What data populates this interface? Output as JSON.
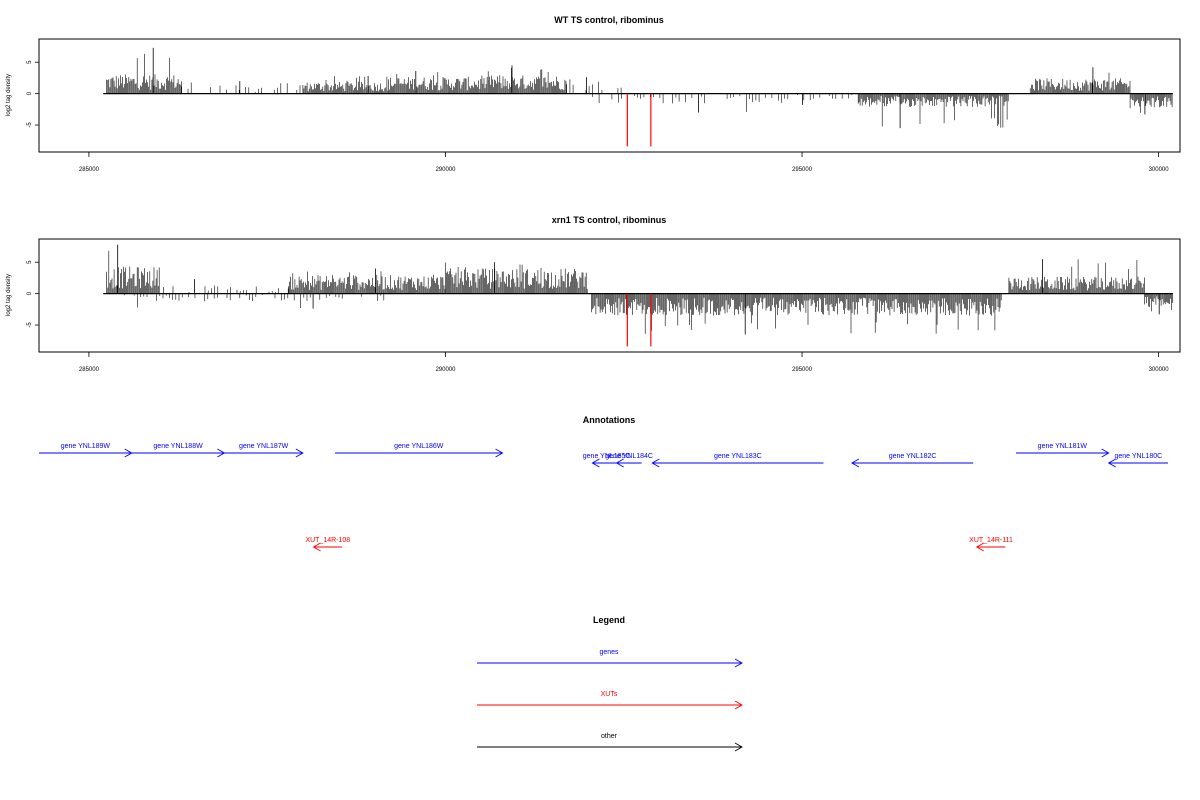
{
  "chart_data": [
    {
      "type": "bar",
      "title": "WT TS control, ribominus",
      "ylabel": "log2 tag density",
      "xlim": [
        284300,
        300300
      ],
      "ylim": [
        -9.3,
        8.7
      ],
      "xticks": [
        285000,
        290000,
        295000,
        300000
      ],
      "xtick_labels": [
        "285000",
        "290000",
        "295000",
        "300000"
      ],
      "yticks": [
        5,
        0,
        -5
      ],
      "ytick_labels": [
        "5",
        "0",
        "-5"
      ],
      "baseline_range": [
        285200,
        300200
      ],
      "highlight_positions": [
        292550,
        292880
      ],
      "highlight_color": "#ff0000",
      "bar_color": "#000000",
      "segments": [
        {
          "strand": "+",
          "x": [
            285250,
            286300
          ],
          "level": 2.3,
          "max": 7.3
        },
        {
          "strand": "+",
          "x": [
            286300,
            288000
          ],
          "level": 1.0,
          "max": 2.0,
          "sparse": true
        },
        {
          "strand": "+",
          "x": [
            288000,
            289200
          ],
          "level": 1.4,
          "max": 2.8
        },
        {
          "strand": "+",
          "x": [
            289200,
            290600
          ],
          "level": 2.0,
          "max": 3.6
        },
        {
          "strand": "+",
          "x": [
            290600,
            291700
          ],
          "level": 2.2,
          "max": 4.5
        },
        {
          "strand": "+",
          "x": [
            291700,
            292500
          ],
          "level": 1.2,
          "max": 2.6,
          "sparse": true
        },
        {
          "strand": "-",
          "x": [
            292020,
            294800
          ],
          "level": 1.2,
          "max": 3.0,
          "sparse": true
        },
        {
          "strand": "-",
          "x": [
            294800,
            295800
          ],
          "level": 0.8,
          "max": 1.8,
          "sparse": true
        },
        {
          "strand": "-",
          "x": [
            295800,
            297900
          ],
          "level": 1.6,
          "max": 5.5
        },
        {
          "strand": "+",
          "x": [
            298200,
            299600
          ],
          "level": 1.8,
          "max": 4.2
        },
        {
          "strand": "-",
          "x": [
            299600,
            300200
          ],
          "level": 1.8,
          "max": 3.3
        }
      ]
    },
    {
      "type": "bar",
      "title": "xrn1 TS control, ribominus",
      "ylabel": "log2 tag density",
      "xlim": [
        284300,
        300300
      ],
      "ylim": [
        -9.3,
        8.7
      ],
      "xticks": [
        285000,
        290000,
        295000,
        300000
      ],
      "xtick_labels": [
        "285000",
        "290000",
        "295000",
        "300000"
      ],
      "yticks": [
        5,
        0,
        -5
      ],
      "ytick_labels": [
        "5",
        "0",
        "-5"
      ],
      "baseline_range": [
        285200,
        300200
      ],
      "highlight_positions": [
        292550,
        292880
      ],
      "highlight_color": "#ff0000",
      "bar_color": "#000000",
      "segments": [
        {
          "strand": "+",
          "x": [
            285250,
            286000
          ],
          "level": 3.2,
          "max": 7.8
        },
        {
          "strand": "+",
          "x": [
            286000,
            287800
          ],
          "level": 1.0,
          "max": 2.3,
          "sparse": true
        },
        {
          "strand": "+",
          "x": [
            287800,
            290000
          ],
          "level": 2.2,
          "max": 4.0
        },
        {
          "strand": "+",
          "x": [
            290000,
            292000
          ],
          "level": 3.0,
          "max": 5.0
        },
        {
          "strand": "-",
          "x": [
            285500,
            289200
          ],
          "level": 0.9,
          "max": 2.4,
          "sparse": true
        },
        {
          "strand": "-",
          "x": [
            292050,
            297800
          ],
          "level": 2.6,
          "max": 6.5
        },
        {
          "strand": "+",
          "x": [
            297900,
            299800
          ],
          "level": 2.0,
          "max": 5.5
        },
        {
          "strand": "-",
          "x": [
            299800,
            300200
          ],
          "level": 1.6,
          "max": 3.3
        }
      ]
    }
  ],
  "annotations": {
    "title": "Annotations",
    "features": [
      {
        "label": "gene YNL189W",
        "strand": "+",
        "start": 284300,
        "end": 285600,
        "color": "#0000ff",
        "row": 0
      },
      {
        "label": "gene YNL188W",
        "strand": "+",
        "start": 285600,
        "end": 286900,
        "color": "#0000ff",
        "row": 0
      },
      {
        "label": "gene YNL187W",
        "strand": "+",
        "start": 286900,
        "end": 288000,
        "color": "#0000ff",
        "row": 0
      },
      {
        "label": "gene YNL186W",
        "strand": "+",
        "start": 288450,
        "end": 290800,
        "color": "#0000ff",
        "row": 0
      },
      {
        "label": "gene YNL185C",
        "strand": "-",
        "start": 292060,
        "end": 292460,
        "color": "#0000ff",
        "row": 1
      },
      {
        "label": "gene YNL184C",
        "strand": "-",
        "start": 292400,
        "end": 292750,
        "color": "#0000ff",
        "row": 1
      },
      {
        "label": "gene YNL183C",
        "strand": "-",
        "start": 292900,
        "end": 295300,
        "color": "#0000ff",
        "row": 1
      },
      {
        "label": "gene YNL182C",
        "strand": "-",
        "start": 295700,
        "end": 297400,
        "color": "#0000ff",
        "row": 1
      },
      {
        "label": "gene YNL181W",
        "strand": "+",
        "start": 298000,
        "end": 299300,
        "color": "#0000ff",
        "row": 0
      },
      {
        "label": "gene YNL180C",
        "strand": "-",
        "start": 299300,
        "end": 300300,
        "color": "#0000ff",
        "row": 1
      },
      {
        "label": "XUT_14R-108",
        "strand": "-",
        "start": 288150,
        "end": 288550,
        "color": "#ff0000",
        "row": 2
      },
      {
        "label": "XUT_14R-111",
        "strand": "-",
        "start": 297450,
        "end": 297850,
        "color": "#ff0000",
        "row": 2
      }
    ]
  },
  "legend": {
    "title": "Legend",
    "items": [
      {
        "label": "genes",
        "color": "#0000ff"
      },
      {
        "label": "XUTs",
        "color": "#ff0000"
      },
      {
        "label": "other",
        "color": "#000000"
      }
    ]
  }
}
